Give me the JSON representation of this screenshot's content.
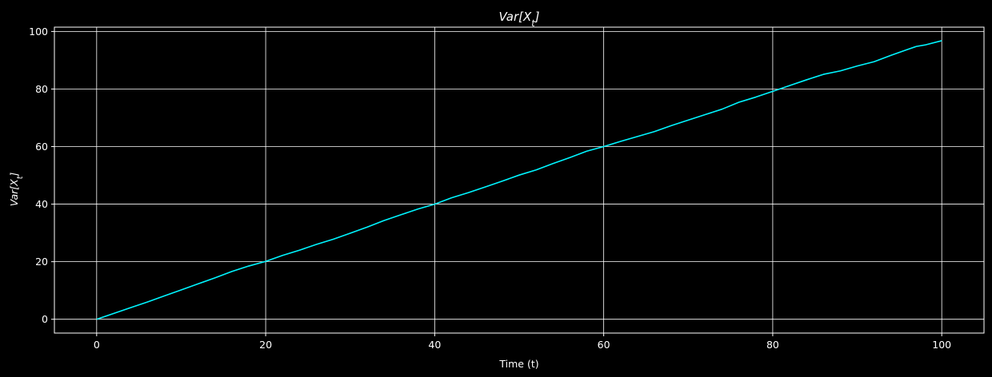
{
  "chart_data": {
    "type": "line",
    "title": "Var[X_t]",
    "xlabel": "Time (t)",
    "ylabel": "Var[X_t]",
    "xlim": [
      -5,
      105
    ],
    "ylim": [
      -4.8,
      101.5
    ],
    "xticks": [
      0,
      20,
      40,
      60,
      80,
      100
    ],
    "yticks": [
      0,
      20,
      40,
      60,
      80,
      100
    ],
    "xtick_labels": [
      "0",
      "20",
      "40",
      "60",
      "80",
      "100"
    ],
    "ytick_labels": [
      "0",
      "20",
      "40",
      "60",
      "80",
      "100"
    ],
    "grid": true,
    "colors": {
      "background": "#000000",
      "line": "#00f5ff",
      "text": "#ffffff",
      "grid": "#ffffff"
    },
    "series": [
      {
        "x": [
          0,
          2,
          4,
          6,
          8,
          10,
          12,
          14,
          16,
          18,
          20,
          22,
          24,
          26,
          28,
          30,
          32,
          34,
          36,
          38,
          40,
          42,
          44,
          46,
          48,
          50,
          52,
          54,
          56,
          58,
          60,
          62,
          64,
          66,
          68,
          70,
          72,
          74,
          76,
          78,
          80,
          82,
          84,
          86,
          88,
          90,
          92,
          94,
          96,
          97,
          98,
          100
        ],
        "values": [
          0,
          2.0,
          4.0,
          6.0,
          8.1,
          10.2,
          12.3,
          14.4,
          16.6,
          18.5,
          20.1,
          22.2,
          24.0,
          26.0,
          27.8,
          29.9,
          32.0,
          34.3,
          36.3,
          38.3,
          40.0,
          42.2,
          44.0,
          46.0,
          48.0,
          50.1,
          51.9,
          54.1,
          56.2,
          58.4,
          60.0,
          61.8,
          63.5,
          65.2,
          67.3,
          69.2,
          71.1,
          73.0,
          75.4,
          77.2,
          79.2,
          81.2,
          83.2,
          85.1,
          86.3,
          88.0,
          89.5,
          91.7,
          93.8,
          94.8,
          95.3,
          96.8
        ]
      }
    ]
  }
}
